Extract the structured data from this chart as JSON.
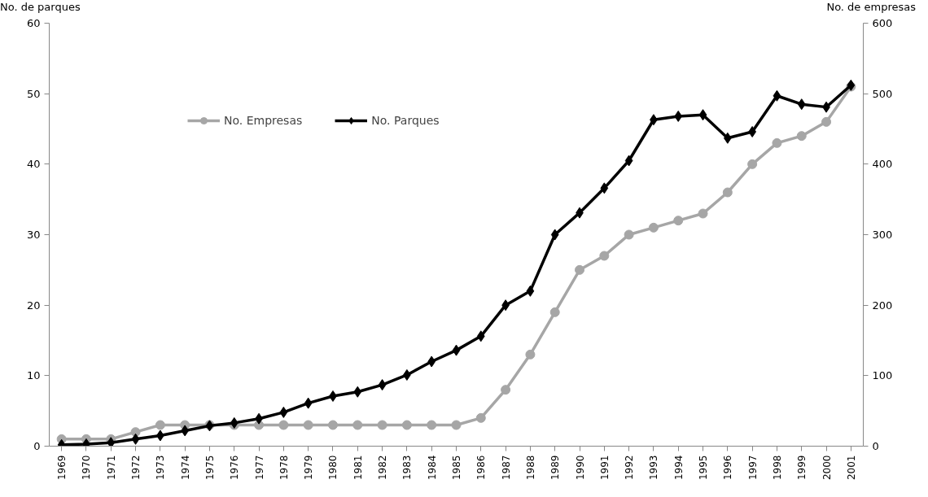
{
  "chart_data": {
    "type": "line",
    "ylabel": "No. de parques",
    "y2label": "No. de empresas",
    "categories": [
      "1969",
      "1970",
      "1971",
      "1972",
      "1973",
      "1974",
      "1975",
      "1976",
      "1977",
      "1978",
      "1979",
      "1980",
      "1981",
      "1982",
      "1983",
      "1984",
      "1985",
      "1986",
      "1987",
      "1988",
      "1989",
      "1990",
      "1991",
      "1992",
      "1993",
      "1994",
      "1995",
      "1996",
      "1997",
      "1998",
      "1999",
      "2000",
      "2001"
    ],
    "ylim": [
      0,
      60
    ],
    "yticks": [
      0,
      10,
      20,
      30,
      40,
      50,
      60
    ],
    "y2lim": [
      0,
      600
    ],
    "y2ticks": [
      0,
      100,
      200,
      300,
      400,
      500,
      600
    ],
    "grid": false,
    "legend": "top",
    "line_style": "solid",
    "series": [
      {
        "name": "No. Empresas",
        "color": "#a6a6a6",
        "marker": "circle",
        "values": [
          1,
          1,
          1,
          2,
          3,
          3,
          3,
          3,
          3,
          3,
          3,
          3,
          3,
          3,
          3,
          3,
          3,
          4,
          8,
          13,
          19,
          25,
          27,
          30,
          31,
          32,
          33,
          36,
          40,
          43,
          44,
          46,
          51
        ]
      },
      {
        "name": "No. Parques",
        "color": "#000000",
        "marker": "diamond",
        "axis": "y2",
        "values": [
          2,
          3,
          5,
          10,
          15,
          22,
          29,
          33,
          39,
          48,
          61,
          71,
          77,
          87,
          101,
          120,
          136,
          156,
          200,
          220,
          300,
          331,
          366,
          405,
          463,
          468,
          470,
          437,
          446,
          497,
          485,
          481,
          512
        ]
      }
    ]
  }
}
